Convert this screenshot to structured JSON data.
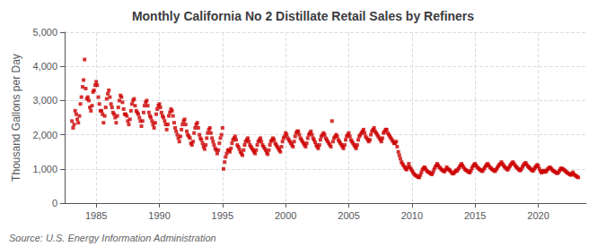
{
  "chart_data": {
    "type": "scatter",
    "title": "Monthly California No 2 Distillate Retail Sales by Refiners",
    "ylabel": "Thousand Gallons per Day",
    "annotations": [
      "Source: U.S. Energy Information Administration"
    ],
    "color": "#CC0000",
    "marker": "square",
    "grid": true,
    "xlim": [
      1982.5,
      2023.8
    ],
    "xticks": [
      1985,
      1990,
      1995,
      2000,
      2005,
      2010,
      2015,
      2020
    ],
    "ylim": [
      0,
      5000
    ],
    "yticks": [
      0,
      {
        "value": 1000,
        "label": "1,000"
      },
      {
        "value": 2000,
        "label": "2,000"
      },
      {
        "value": 3000,
        "label": "3,000"
      },
      {
        "value": 4000,
        "label": "4,000"
      },
      {
        "value": 5000,
        "label": "5,000"
      }
    ],
    "x": [
      1983.08,
      1983.17,
      1983.25,
      1983.33,
      1983.42,
      1983.5,
      1983.58,
      1983.67,
      1983.75,
      1983.83,
      1983.92,
      1984.0,
      1984.08,
      1984.17,
      1984.25,
      1984.33,
      1984.42,
      1984.5,
      1984.58,
      1984.67,
      1984.75,
      1984.83,
      1984.92,
      1985.0,
      1985.08,
      1985.17,
      1985.25,
      1985.33,
      1985.42,
      1985.5,
      1985.58,
      1985.67,
      1985.75,
      1985.83,
      1985.92,
      1986.0,
      1986.08,
      1986.17,
      1986.25,
      1986.33,
      1986.42,
      1986.5,
      1986.58,
      1986.67,
      1986.75,
      1986.83,
      1986.92,
      1987.0,
      1987.08,
      1987.17,
      1987.25,
      1987.33,
      1987.42,
      1987.5,
      1987.58,
      1987.67,
      1987.75,
      1987.83,
      1987.92,
      1988.0,
      1988.08,
      1988.17,
      1988.25,
      1988.33,
      1988.42,
      1988.5,
      1988.58,
      1988.67,
      1988.75,
      1988.83,
      1988.92,
      1989.0,
      1989.08,
      1989.17,
      1989.25,
      1989.33,
      1989.42,
      1989.5,
      1989.58,
      1989.67,
      1989.75,
      1989.83,
      1989.92,
      1990.0,
      1990.08,
      1990.17,
      1990.25,
      1990.33,
      1990.42,
      1990.5,
      1990.58,
      1990.67,
      1990.75,
      1990.83,
      1990.92,
      1991.0,
      1991.08,
      1991.17,
      1991.25,
      1991.33,
      1991.42,
      1991.5,
      1991.58,
      1991.67,
      1991.75,
      1991.83,
      1991.92,
      1992.0,
      1992.08,
      1992.17,
      1992.25,
      1992.33,
      1992.42,
      1992.5,
      1992.58,
      1992.67,
      1992.75,
      1992.83,
      1992.92,
      1993.0,
      1993.08,
      1993.17,
      1993.25,
      1993.33,
      1993.42,
      1993.5,
      1993.58,
      1993.67,
      1993.75,
      1993.83,
      1993.92,
      1994.0,
      1994.08,
      1994.17,
      1994.25,
      1994.33,
      1994.42,
      1994.5,
      1994.58,
      1994.67,
      1994.75,
      1994.83,
      1994.92,
      1995.0,
      1995.08,
      1995.17,
      1995.25,
      1995.33,
      1995.42,
      1995.5,
      1995.58,
      1995.67,
      1995.75,
      1995.83,
      1995.92,
      1996.0,
      1996.08,
      1996.17,
      1996.25,
      1996.33,
      1996.42,
      1996.5,
      1996.58,
      1996.67,
      1996.75,
      1996.83,
      1996.92,
      1997.0,
      1997.08,
      1997.17,
      1997.25,
      1997.33,
      1997.42,
      1997.5,
      1997.58,
      1997.67,
      1997.75,
      1997.83,
      1997.92,
      1998.0,
      1998.08,
      1998.17,
      1998.25,
      1998.33,
      1998.42,
      1998.5,
      1998.58,
      1998.67,
      1998.75,
      1998.83,
      1998.92,
      1999.0,
      1999.08,
      1999.17,
      1999.25,
      1999.33,
      1999.42,
      1999.5,
      1999.58,
      1999.67,
      1999.75,
      1999.83,
      1999.92,
      2000.0,
      2000.08,
      2000.17,
      2000.25,
      2000.33,
      2000.42,
      2000.5,
      2000.58,
      2000.67,
      2000.75,
      2000.83,
      2000.92,
      2001.0,
      2001.08,
      2001.17,
      2001.25,
      2001.33,
      2001.42,
      2001.5,
      2001.58,
      2001.67,
      2001.75,
      2001.83,
      2001.92,
      2002.0,
      2002.08,
      2002.17,
      2002.25,
      2002.33,
      2002.42,
      2002.5,
      2002.58,
      2002.67,
      2002.75,
      2002.83,
      2002.92,
      2003.0,
      2003.08,
      2003.17,
      2003.25,
      2003.33,
      2003.42,
      2003.5,
      2003.58,
      2003.67,
      2003.75,
      2003.83,
      2003.92,
      2004.0,
      2004.08,
      2004.17,
      2004.25,
      2004.33,
      2004.42,
      2004.5,
      2004.58,
      2004.67,
      2004.75,
      2004.83,
      2004.92,
      2005.0,
      2005.08,
      2005.17,
      2005.25,
      2005.33,
      2005.42,
      2005.5,
      2005.58,
      2005.67,
      2005.75,
      2005.83,
      2005.92,
      2006.0,
      2006.08,
      2006.17,
      2006.25,
      2006.33,
      2006.42,
      2006.5,
      2006.58,
      2006.67,
      2006.75,
      2006.83,
      2006.92,
      2007.0,
      2007.08,
      2007.17,
      2007.25,
      2007.33,
      2007.42,
      2007.5,
      2007.58,
      2007.67,
      2007.75,
      2007.83,
      2007.92,
      2008.0,
      2008.08,
      2008.17,
      2008.25,
      2008.33,
      2008.42,
      2008.5,
      2008.58,
      2008.67,
      2008.75,
      2008.83,
      2008.92,
      2009.0,
      2009.08,
      2009.17,
      2009.25,
      2009.33,
      2009.42,
      2009.5,
      2009.58,
      2009.67,
      2009.75,
      2009.83,
      2009.92,
      2010.0,
      2010.08,
      2010.17,
      2010.25,
      2010.33,
      2010.42,
      2010.5,
      2010.58,
      2010.67,
      2010.75,
      2010.83,
      2010.92,
      2011.0,
      2011.08,
      2011.17,
      2011.25,
      2011.33,
      2011.42,
      2011.5,
      2011.58,
      2011.67,
      2011.75,
      2011.83,
      2011.92,
      2012.0,
      2012.08,
      2012.17,
      2012.25,
      2012.33,
      2012.42,
      2012.5,
      2012.58,
      2012.67,
      2012.75,
      2012.83,
      2012.92,
      2013.0,
      2013.08,
      2013.17,
      2013.25,
      2013.33,
      2013.42,
      2013.5,
      2013.58,
      2013.67,
      2013.75,
      2013.83,
      2013.92,
      2014.0,
      2014.08,
      2014.17,
      2014.25,
      2014.33,
      2014.42,
      2014.5,
      2014.58,
      2014.67,
      2014.75,
      2014.83,
      2014.92,
      2015.0,
      2015.08,
      2015.17,
      2015.25,
      2015.33,
      2015.42,
      2015.5,
      2015.58,
      2015.67,
      2015.75,
      2015.83,
      2015.92,
      2016.0,
      2016.08,
      2016.17,
      2016.25,
      2016.33,
      2016.42,
      2016.5,
      2016.58,
      2016.67,
      2016.75,
      2016.83,
      2016.92,
      2017.0,
      2017.08,
      2017.17,
      2017.25,
      2017.33,
      2017.42,
      2017.5,
      2017.58,
      2017.67,
      2017.75,
      2017.83,
      2017.92,
      2018.0,
      2018.08,
      2018.17,
      2018.25,
      2018.33,
      2018.42,
      2018.5,
      2018.58,
      2018.67,
      2018.75,
      2018.83,
      2018.92,
      2019.0,
      2019.08,
      2019.17,
      2019.25,
      2019.33,
      2019.42,
      2019.5,
      2019.58,
      2019.67,
      2019.75,
      2019.83,
      2019.92,
      2020.0,
      2020.08,
      2020.17,
      2020.25,
      2020.33,
      2020.42,
      2020.5,
      2020.58,
      2020.67,
      2020.75,
      2020.83,
      2020.92,
      2021.0,
      2021.08,
      2021.17,
      2021.25,
      2021.33,
      2021.42,
      2021.5,
      2021.58,
      2021.67,
      2021.75,
      2021.83,
      2021.92,
      2022.0,
      2022.08,
      2022.17,
      2022.25,
      2022.33,
      2022.42,
      2022.5,
      2022.58,
      2022.67,
      2022.75,
      2022.83,
      2022.92,
      2023.0,
      2023.08,
      2023.17
    ],
    "values": [
      2400,
      2200,
      2300,
      2700,
      2600,
      2450,
      2350,
      2550,
      2900,
      3100,
      3400,
      3600,
      4200,
      3350,
      3050,
      3100,
      3000,
      2800,
      2700,
      2850,
      3250,
      3300,
      3450,
      3550,
      3450,
      3100,
      2900,
      2700,
      2700,
      2600,
      2350,
      2550,
      2800,
      3050,
      3200,
      3300,
      3100,
      2900,
      2800,
      2650,
      2600,
      2500,
      2350,
      2550,
      2800,
      3000,
      3150,
      3100,
      2950,
      2750,
      2600,
      2600,
      2550,
      2400,
      2300,
      2450,
      2700,
      2900,
      3000,
      3050,
      2850,
      2700,
      2650,
      2600,
      2500,
      2400,
      2250,
      2400,
      2650,
      2850,
      2950,
      3000,
      2850,
      2650,
      2550,
      2500,
      2400,
      2300,
      2200,
      2350,
      2600,
      2750,
      2850,
      2900,
      2800,
      2650,
      2550,
      2500,
      2400,
      2300,
      2150,
      2300,
      2550,
      2650,
      2750,
      2700,
      2550,
      2350,
      2200,
      2100,
      2000,
      1900,
      1800,
      1950,
      2150,
      2300,
      2400,
      2450,
      2300,
      2100,
      2000,
      1950,
      1900,
      1750,
      1700,
      1800,
      2050,
      2200,
      2300,
      2350,
      2200,
      2000,
      1900,
      1850,
      1750,
      1650,
      1580,
      1700,
      1900,
      2050,
      2150,
      2200,
      2050,
      1900,
      1800,
      1700,
      1600,
      1550,
      1450,
      1550,
      1750,
      1900,
      2000,
      2200,
      1000,
      1200,
      1350,
      1450,
      1550,
      1550,
      1500,
      1600,
      1750,
      1850,
      1900,
      1950,
      1850,
      1700,
      1650,
      1580,
      1500,
      1450,
      1400,
      1550,
      1700,
      1800,
      1850,
      1900,
      1800,
      1700,
      1650,
      1600,
      1550,
      1500,
      1450,
      1550,
      1700,
      1800,
      1850,
      1900,
      1800,
      1700,
      1650,
      1600,
      1550,
      1480,
      1430,
      1550,
      1700,
      1800,
      1850,
      1900,
      1850,
      1750,
      1700,
      1650,
      1600,
      1550,
      1500,
      1650,
      1800,
      1900,
      1950,
      2050,
      2000,
      1900,
      1850,
      1800,
      1750,
      1700,
      1650,
      1800,
      1950,
      2050,
      2100,
      2100,
      2000,
      1900,
      1850,
      1800,
      1750,
      1700,
      1650,
      1750,
      1900,
      2000,
      2050,
      2100,
      2000,
      1900,
      1850,
      1780,
      1700,
      1650,
      1600,
      1700,
      1850,
      1950,
      2000,
      2050,
      2000,
      1900,
      1850,
      1800,
      1750,
      1700,
      1650,
      2400,
      1800,
      1900,
      1950,
      2000,
      1950,
      1850,
      1800,
      1750,
      1700,
      1650,
      1600,
      1700,
      1850,
      1950,
      2000,
      2050,
      1950,
      1850,
      1800,
      1750,
      1700,
      1650,
      1600,
      1700,
      1850,
      1950,
      2000,
      2050,
      2100,
      2150,
      2050,
      1950,
      1900,
      1850,
      1800,
      1850,
      2000,
      2100,
      2150,
      2200,
      2100,
      2050,
      2000,
      1950,
      1900,
      1850,
      1800,
      1900,
      2050,
      2100,
      2150,
      2150,
      2050,
      2000,
      1950,
      1900,
      1850,
      1800,
      1750,
      1750,
      1800,
      1650,
      1500,
      1400,
      1300,
      1200,
      1150,
      1100,
      1050,
      1000,
      980,
      1050,
      1150,
      1050,
      1000,
      950,
      900,
      850,
      820,
      800,
      780,
      760,
      750,
      820,
      900,
      980,
      1020,
      1050,
      1000,
      950,
      920,
      900,
      880,
      860,
      840,
      900,
      980,
      1050,
      1100,
      1150,
      1100,
      1050,
      1020,
      980,
      960,
      940,
      920,
      980,
      1050,
      1000,
      980,
      960,
      920,
      880,
      860,
      880,
      920,
      960,
      940,
      1000,
      1050,
      1100,
      1150,
      1100,
      1050,
      1000,
      970,
      950,
      930,
      910,
      890,
      950,
      1020,
      1080,
      1120,
      1150,
      1100,
      1050,
      1020,
      990,
      970,
      950,
      930,
      980,
      1030,
      1080,
      1120,
      1150,
      1100,
      1050,
      1020,
      990,
      970,
      950,
      930,
      980,
      1030,
      1080,
      1120,
      1150,
      1200,
      1150,
      1100,
      1060,
      1030,
      1000,
      970,
      1030,
      1080,
      1130,
      1170,
      1200,
      1150,
      1100,
      1060,
      1030,
      1000,
      970,
      950,
      1000,
      1060,
      1110,
      1150,
      1180,
      1130,
      1080,
      1050,
      1020,
      990,
      960,
      940,
      990,
      1040,
      1080,
      1120,
      1080,
      1000,
      940,
      890,
      910,
      950,
      930,
      910,
      950,
      990,
      1020,
      1050,
      1020,
      980,
      950,
      930,
      910,
      890,
      870,
      890,
      940,
      990,
      1020,
      1000,
      980,
      960,
      930,
      900,
      880,
      860,
      840,
      820,
      860,
      900,
      840,
      810,
      790,
      770,
      750
    ]
  }
}
